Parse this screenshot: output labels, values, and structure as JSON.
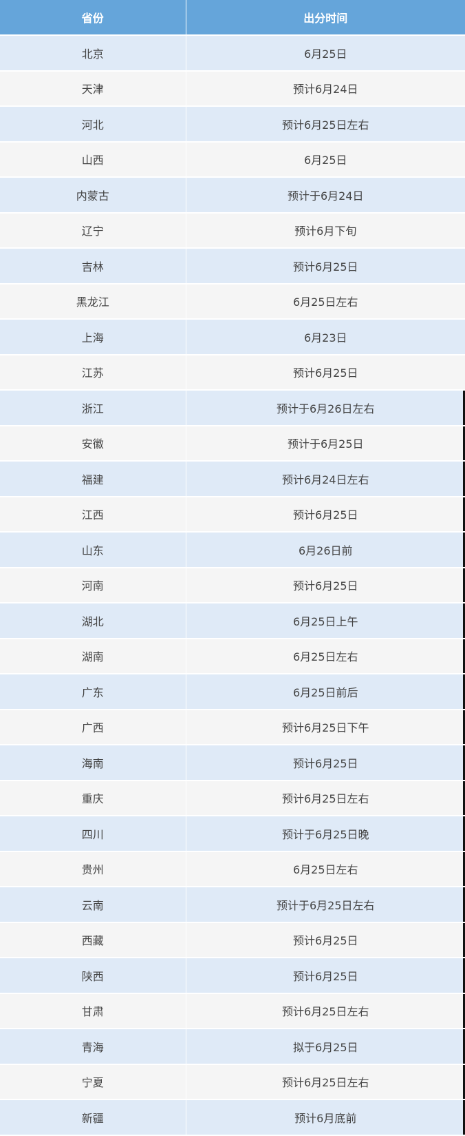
{
  "table": {
    "headers": [
      "省份",
      "出分时间"
    ],
    "rows": [
      [
        "北京",
        "6月25日"
      ],
      [
        "天津",
        "预计6月24日"
      ],
      [
        "河北",
        "预计6月25日左右"
      ],
      [
        "山西",
        "6月25日"
      ],
      [
        "内蒙古",
        "预计于6月24日"
      ],
      [
        "辽宁",
        "预计6月下旬"
      ],
      [
        "吉林",
        "预计6月25日"
      ],
      [
        "黑龙江",
        "6月25日左右"
      ],
      [
        "上海",
        "6月23日"
      ],
      [
        "江苏",
        "预计6月25日"
      ],
      [
        "浙江",
        "预计于6月26日左右"
      ],
      [
        "安徽",
        "预计于6月25日"
      ],
      [
        "福建",
        "预计6月24日左右"
      ],
      [
        "江西",
        "预计6月25日"
      ],
      [
        "山东",
        "6月26日前"
      ],
      [
        "河南",
        "预计6月25日"
      ],
      [
        "湖北",
        "6月25日上午"
      ],
      [
        "湖南",
        "6月25日左右"
      ],
      [
        "广东",
        "6月25日前后"
      ],
      [
        "广西",
        "预计6月25日下午"
      ],
      [
        "海南",
        "预计6月25日"
      ],
      [
        "重庆",
        "预计6月25日左右"
      ],
      [
        "四川",
        "预计于6月25日晚"
      ],
      [
        "贵州",
        "6月25日左右"
      ],
      [
        "云南",
        "预计于6月25日左右"
      ],
      [
        "西藏",
        "预计6月25日"
      ],
      [
        "陕西",
        "预计6月25日"
      ],
      [
        "甘肃",
        "预计6月25日左右"
      ],
      [
        "青海",
        "拟于6月25日"
      ],
      [
        "宁夏",
        "预计6月25日左右"
      ],
      [
        "新疆",
        "预计6月底前"
      ]
    ]
  },
  "colors": {
    "header": "#65a5da",
    "row_odd": "#dfeaf7",
    "row_even": "#f5f5f5"
  }
}
